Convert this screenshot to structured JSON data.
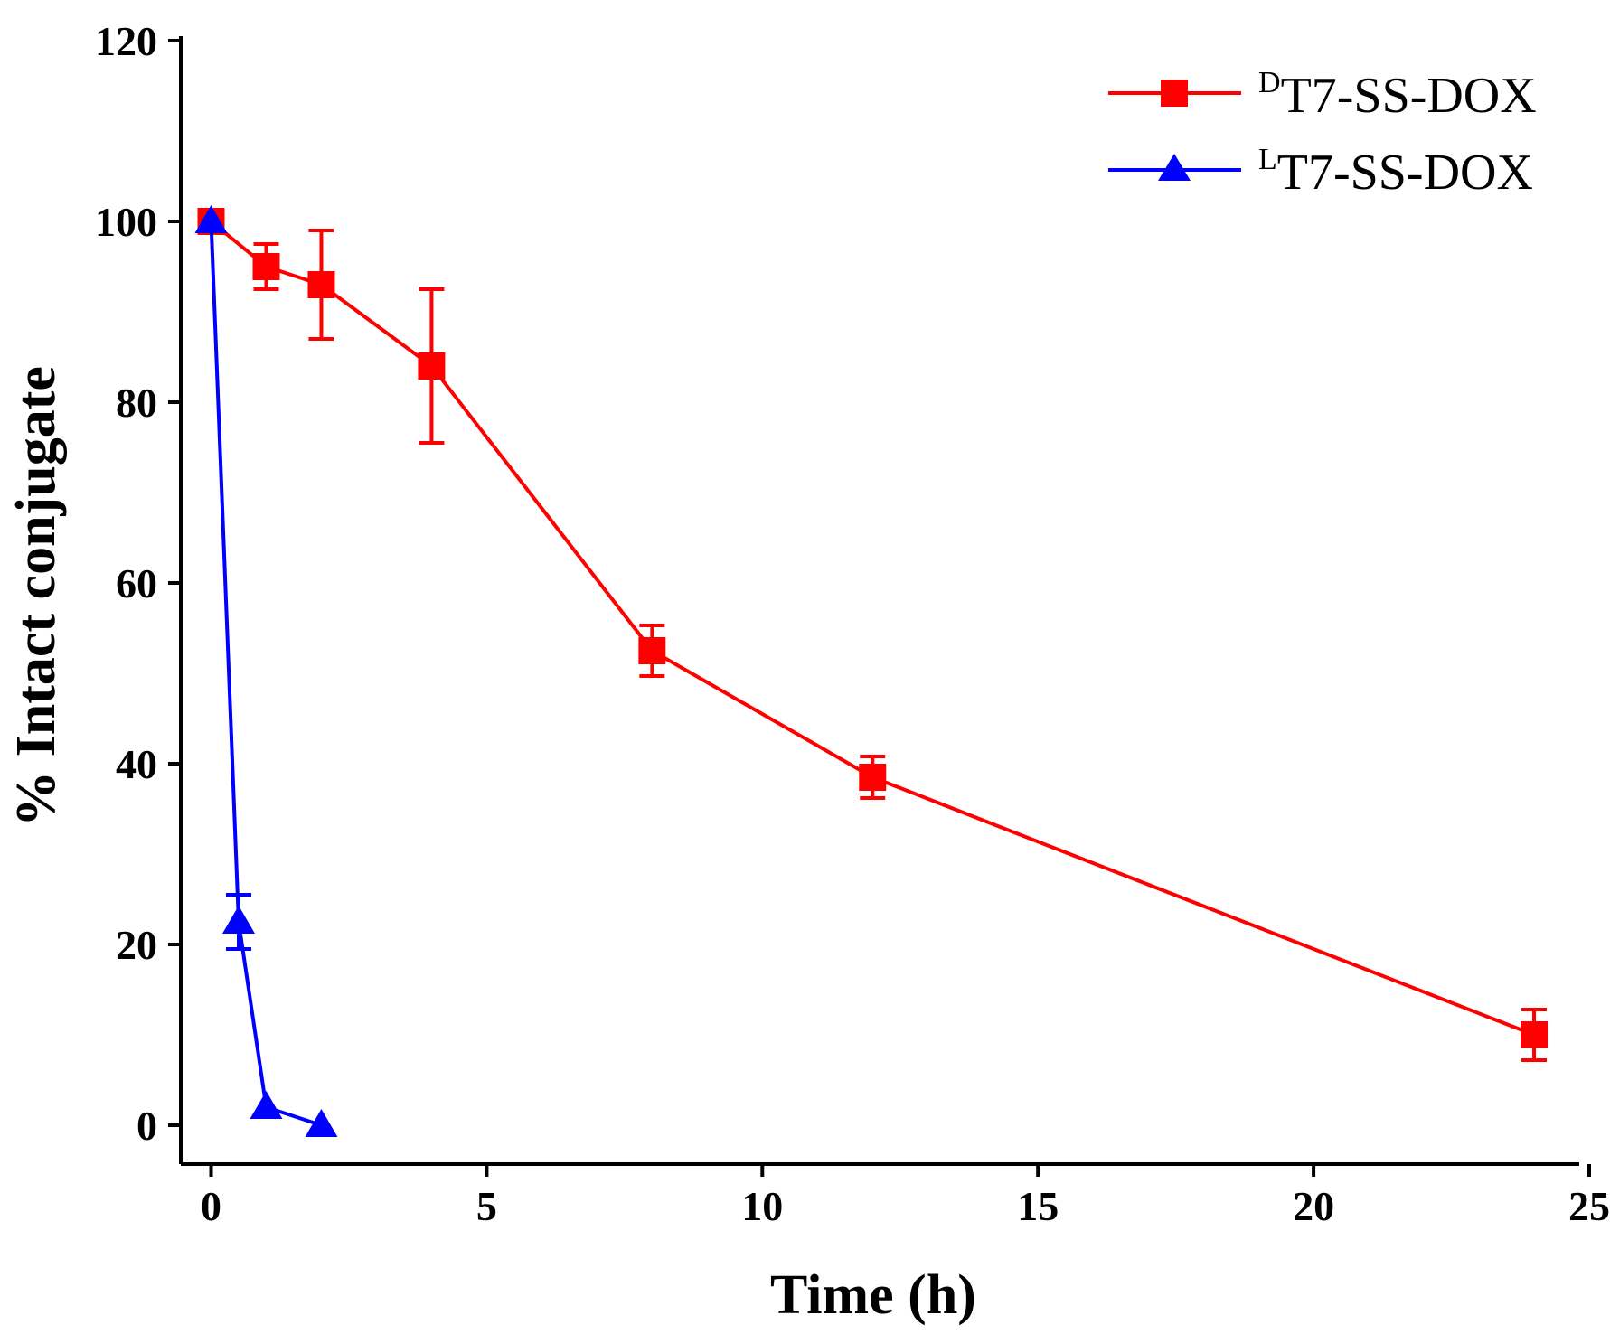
{
  "chart_data": {
    "type": "line",
    "title": "",
    "xlabel": "Time (h)",
    "ylabel": "% Intact conjugate",
    "xlim": [
      -0.5,
      25
    ],
    "ylim": [
      -5,
      120
    ],
    "xticks": [
      0,
      5,
      10,
      15,
      20,
      25
    ],
    "yticks": [
      0,
      20,
      40,
      60,
      80,
      100,
      120
    ],
    "xtick_labels": [
      "0",
      "5",
      "10",
      "15",
      "20",
      "25"
    ],
    "ytick_labels": [
      "0",
      "20",
      "40",
      "60",
      "80",
      "100",
      "120"
    ],
    "legend_position": "top-right",
    "series": [
      {
        "name": "DT7-SS-DOX",
        "legend_sup": "D",
        "legend_text": "T7-SS-DOX",
        "color": "#ff0000",
        "marker": "square",
        "x": [
          0,
          1,
          2,
          4,
          8,
          12,
          24
        ],
        "y": [
          100,
          95,
          93,
          84,
          52.5,
          38.5,
          10
        ],
        "err": [
          0,
          2.5,
          6,
          8.5,
          2.8,
          2.3,
          2.8
        ]
      },
      {
        "name": "LT7-SS-DOX",
        "legend_sup": "L",
        "legend_text": "T7-SS-DOX",
        "color": "#0000ff",
        "marker": "triangle",
        "x": [
          0,
          0.5,
          1,
          2
        ],
        "y": [
          100,
          22.5,
          2,
          0
        ],
        "err": [
          0,
          3,
          0,
          0
        ]
      }
    ]
  }
}
